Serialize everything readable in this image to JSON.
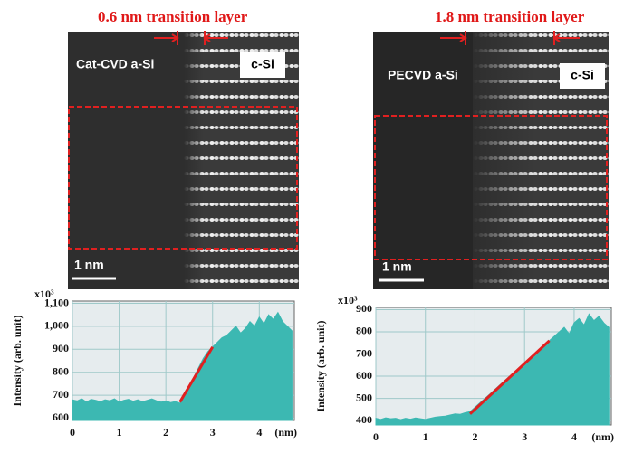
{
  "figure": {
    "panels": [
      {
        "annotation": "0.6 nm transition layer",
        "left_label": "Cat-CVD a-Si",
        "right_label": "c-Si",
        "scale_bar": "1 nm"
      },
      {
        "annotation": "1.8 nm transition layer",
        "left_label": "PECVD a-Si",
        "right_label": "c-Si",
        "scale_bar": "1 nm"
      }
    ]
  },
  "chart_data": [
    {
      "type": "area",
      "y_label": "Intensity (arb. unit)",
      "multiplier": "x10³",
      "x_unit": "(nm)",
      "color": "#3cb8b2",
      "grid": true,
      "x": [
        0,
        0.1,
        0.2,
        0.3,
        0.4,
        0.5,
        0.6,
        0.7,
        0.8,
        0.9,
        1,
        1.1,
        1.2,
        1.3,
        1.4,
        1.5,
        1.6,
        1.7,
        1.8,
        1.9,
        2,
        2.1,
        2.2,
        2.3,
        2.4,
        2.5,
        2.6,
        2.7,
        2.8,
        2.9,
        3,
        3.1,
        3.2,
        3.3,
        3.4,
        3.5,
        3.6,
        3.7,
        3.8,
        3.9,
        4,
        4.1,
        4.2,
        4.3,
        4.4,
        4.5,
        4.6,
        4.7
      ],
      "values": [
        680,
        675,
        685,
        670,
        682,
        678,
        672,
        680,
        676,
        684,
        670,
        678,
        682,
        674,
        680,
        672,
        678,
        684,
        676,
        670,
        675,
        668,
        672,
        665,
        690,
        730,
        780,
        820,
        860,
        890,
        910,
        930,
        950,
        960,
        980,
        1000,
        970,
        990,
        1020,
        1000,
        1040,
        1010,
        1050,
        1030,
        1060,
        1020,
        1000,
        980
      ],
      "xlim": [
        0,
        4.75
      ],
      "xticks": [
        0,
        1,
        2,
        3,
        4
      ],
      "ylim": [
        590,
        1110
      ],
      "yticks": [
        600,
        700,
        800,
        900,
        {
          "value": 1000,
          "label": "1,000"
        },
        {
          "value": 1100,
          "label": "1,100"
        }
      ],
      "trend_line": {
        "x": [
          2.3,
          3.0
        ],
        "y": [
          670,
          910
        ],
        "color": "#e02020"
      }
    },
    {
      "type": "area",
      "y_label": "Intensity (arb. unit)",
      "multiplier": "x10³",
      "x_unit": "(nm)",
      "color": "#3cb8b2",
      "grid": true,
      "x": [
        0,
        0.1,
        0.2,
        0.3,
        0.4,
        0.5,
        0.6,
        0.7,
        0.8,
        0.9,
        1,
        1.1,
        1.2,
        1.3,
        1.4,
        1.5,
        1.6,
        1.7,
        1.8,
        1.9,
        2,
        2.1,
        2.2,
        2.3,
        2.4,
        2.5,
        2.6,
        2.7,
        2.8,
        2.9,
        3,
        3.1,
        3.2,
        3.3,
        3.4,
        3.5,
        3.6,
        3.7,
        3.8,
        3.9,
        4,
        4.1,
        4.2,
        4.3,
        4.4,
        4.5,
        4.6,
        4.7
      ],
      "values": [
        410,
        405,
        412,
        408,
        410,
        404,
        410,
        406,
        412,
        408,
        405,
        410,
        415,
        418,
        420,
        425,
        430,
        428,
        435,
        440,
        460,
        480,
        500,
        520,
        540,
        560,
        580,
        600,
        620,
        640,
        660,
        680,
        700,
        720,
        740,
        760,
        780,
        800,
        820,
        790,
        840,
        860,
        830,
        880,
        850,
        870,
        840,
        820
      ],
      "xlim": [
        0,
        4.75
      ],
      "xticks": [
        0,
        1,
        2,
        3,
        4
      ],
      "ylim": [
        380,
        910
      ],
      "yticks": [
        400,
        500,
        600,
        700,
        800,
        900
      ],
      "trend_line": {
        "x": [
          1.9,
          3.5
        ],
        "y": [
          430,
          760
        ],
        "color": "#e02020"
      }
    }
  ]
}
